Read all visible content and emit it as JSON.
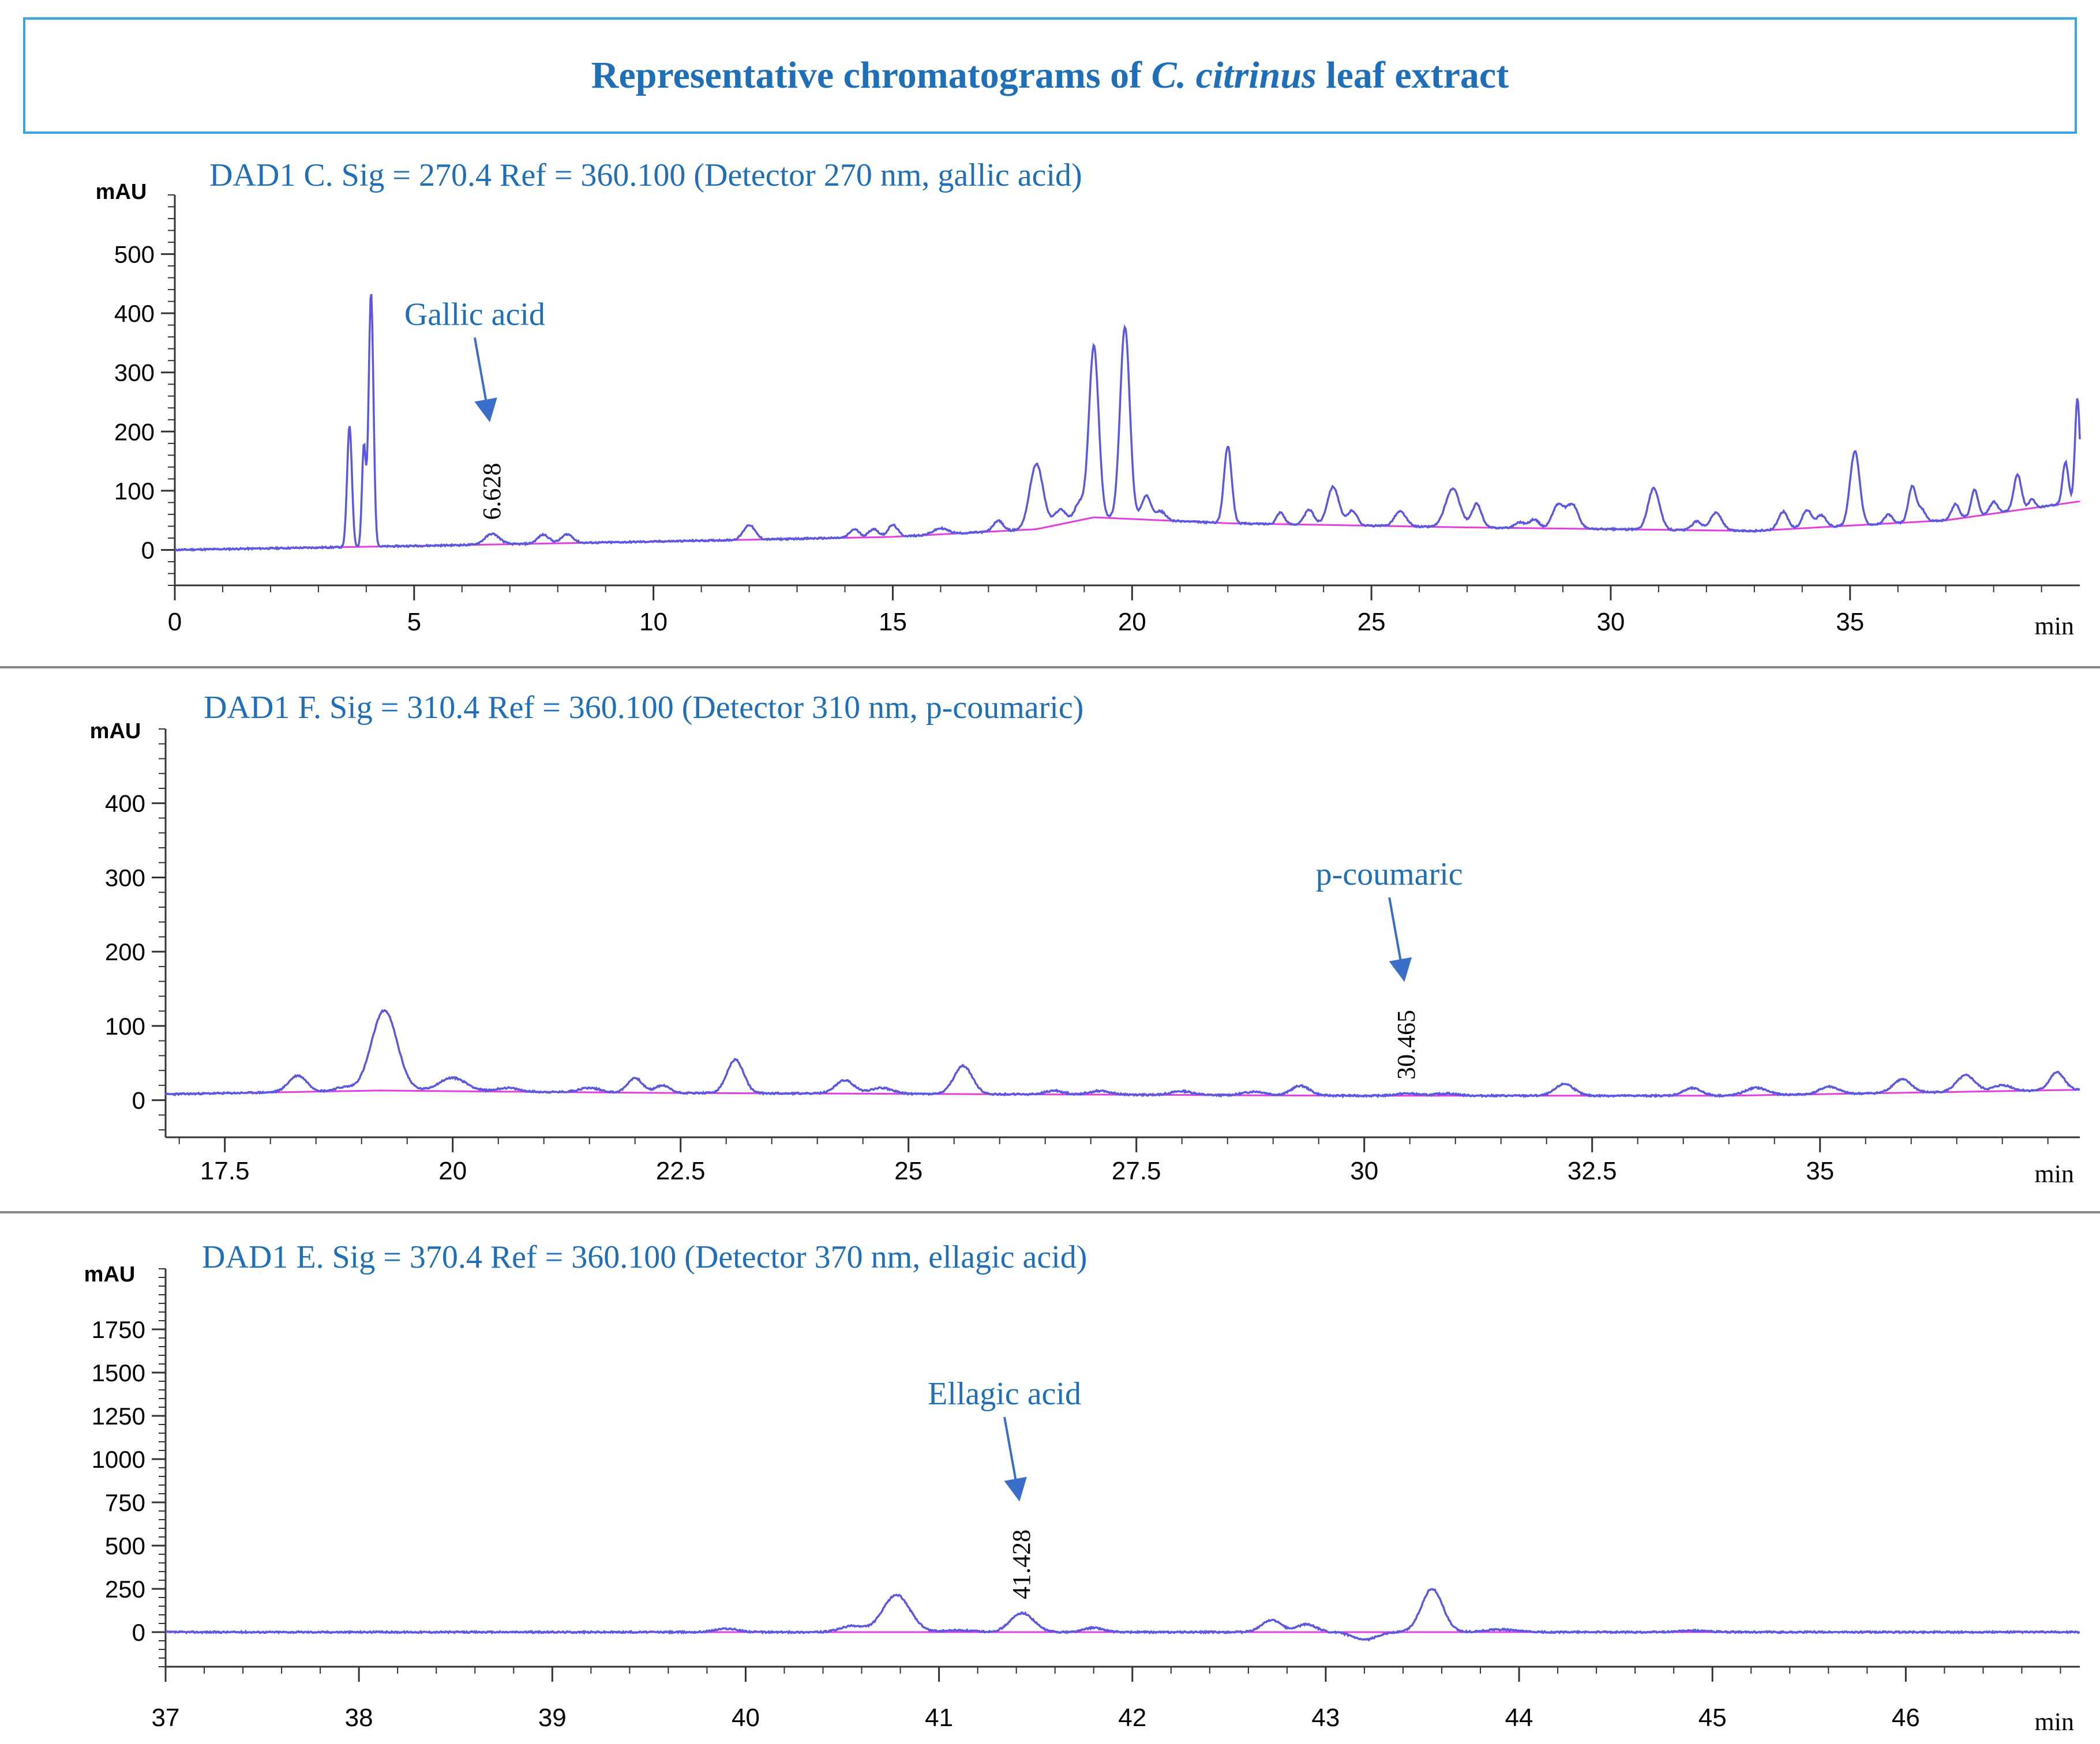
{
  "figure": {
    "title_prefix": "Representative chromatograms of ",
    "title_species": "C. citrinus",
    "title_suffix": " leaf extract",
    "colors": {
      "title": "#1f6fb8",
      "title_border": "#3aa6dd",
      "signal": "#5b57e0",
      "baseline": "#e040e0",
      "label": "#1f6fb8",
      "arrow": "#3a6fc9",
      "axis": "#333333",
      "divider": "#888888"
    }
  },
  "chart_data": [
    {
      "type": "line",
      "id": "p1",
      "title": "DAD1 C. Sig = 270.4     Ref = 360.100 (Detector 270 nm, gallic acid)",
      "xlabel": "min",
      "ylabel": "mAU",
      "xlim": [
        0,
        39.8
      ],
      "ylim": [
        -60,
        600
      ],
      "xticks": [
        0,
        5,
        10,
        15,
        20,
        25,
        30,
        35
      ],
      "xtick_labels": [
        "0",
        "5",
        "10",
        "15",
        "20",
        "25",
        "30",
        "35"
      ],
      "yticks": [
        0,
        100,
        200,
        300,
        400,
        500
      ],
      "ytick_labels": [
        "0",
        "100",
        "200",
        "300",
        "400",
        "500"
      ],
      "baseline": [
        [
          0,
          0
        ],
        [
          3.8,
          5
        ],
        [
          10,
          14
        ],
        [
          15,
          22
        ],
        [
          18,
          35
        ],
        [
          19.2,
          55
        ],
        [
          22,
          45
        ],
        [
          27,
          38
        ],
        [
          33,
          32
        ],
        [
          37,
          50
        ],
        [
          39.8,
          82
        ]
      ],
      "peaks": [
        [
          3.65,
          205,
          0.05
        ],
        [
          3.95,
          170,
          0.04
        ],
        [
          4.1,
          430,
          0.05
        ],
        [
          6.63,
          18,
          0.15
        ],
        [
          7.7,
          15,
          0.12
        ],
        [
          8.2,
          15,
          0.12
        ],
        [
          12.0,
          25,
          0.12
        ],
        [
          14.2,
          14,
          0.1
        ],
        [
          14.6,
          14,
          0.1
        ],
        [
          15.0,
          20,
          0.1
        ],
        [
          16.0,
          10,
          0.15
        ],
        [
          17.2,
          18,
          0.1
        ],
        [
          18.0,
          110,
          0.14
        ],
        [
          18.5,
          25,
          0.12
        ],
        [
          18.9,
          30,
          0.1
        ],
        [
          19.2,
          290,
          0.1
        ],
        [
          19.85,
          325,
          0.1
        ],
        [
          20.3,
          40,
          0.1
        ],
        [
          20.6,
          15,
          0.1
        ],
        [
          22.0,
          130,
          0.08
        ],
        [
          23.1,
          20,
          0.08
        ],
        [
          23.7,
          25,
          0.1
        ],
        [
          24.2,
          65,
          0.12
        ],
        [
          24.6,
          25,
          0.1
        ],
        [
          25.6,
          25,
          0.12
        ],
        [
          26.7,
          65,
          0.15
        ],
        [
          27.2,
          40,
          0.1
        ],
        [
          28.1,
          10,
          0.1
        ],
        [
          28.4,
          15,
          0.1
        ],
        [
          28.9,
          40,
          0.12
        ],
        [
          29.2,
          40,
          0.12
        ],
        [
          30.9,
          70,
          0.12
        ],
        [
          31.8,
          15,
          0.1
        ],
        [
          32.2,
          30,
          0.12
        ],
        [
          33.6,
          30,
          0.1
        ],
        [
          34.1,
          30,
          0.1
        ],
        [
          34.4,
          20,
          0.1
        ],
        [
          35.1,
          125,
          0.1
        ],
        [
          35.8,
          15,
          0.08
        ],
        [
          36.3,
          60,
          0.08
        ],
        [
          36.5,
          20,
          0.08
        ],
        [
          37.2,
          25,
          0.08
        ],
        [
          37.6,
          45,
          0.07
        ],
        [
          38.0,
          20,
          0.08
        ],
        [
          38.5,
          60,
          0.08
        ],
        [
          38.8,
          15,
          0.06
        ],
        [
          39.5,
          70,
          0.06
        ],
        [
          39.75,
          175,
          0.05
        ]
      ],
      "annotations": [
        {
          "label": "Gallic acid",
          "rt": "6.628",
          "x": 6.628
        }
      ],
      "seed": 11
    },
    {
      "type": "line",
      "id": "p2",
      "title": "DAD1 F. Sig = 310.4     Ref = 360.100 (Detector 310 nm, p-coumaric)",
      "xlabel": "min",
      "ylabel": "mAU",
      "xlim": [
        16.85,
        37.85
      ],
      "ylim": [
        -50,
        500
      ],
      "xticks": [
        17.5,
        20,
        22.5,
        25,
        27.5,
        30,
        32.5,
        35
      ],
      "xtick_labels": [
        "17.5",
        "20",
        "22.5",
        "25",
        "27.5",
        "30",
        "32.5",
        "35"
      ],
      "yticks": [
        0,
        100,
        200,
        300,
        400
      ],
      "ytick_labels": [
        "0",
        "100",
        "200",
        "300",
        "400"
      ],
      "baseline": [
        [
          16.85,
          8
        ],
        [
          19.2,
          13
        ],
        [
          22,
          10
        ],
        [
          30,
          6
        ],
        [
          34,
          6
        ],
        [
          37.85,
          14
        ]
      ],
      "peaks": [
        [
          18.3,
          22,
          0.1
        ],
        [
          18.8,
          5,
          0.1
        ],
        [
          19.25,
          108,
          0.14
        ],
        [
          20.0,
          18,
          0.15
        ],
        [
          20.6,
          5,
          0.12
        ],
        [
          21.5,
          6,
          0.12
        ],
        [
          22.0,
          20,
          0.08
        ],
        [
          22.3,
          10,
          0.08
        ],
        [
          23.1,
          45,
          0.09
        ],
        [
          24.3,
          18,
          0.1
        ],
        [
          24.7,
          8,
          0.12
        ],
        [
          25.6,
          38,
          0.1
        ],
        [
          26.6,
          5,
          0.1
        ],
        [
          27.1,
          5,
          0.12
        ],
        [
          28.0,
          5,
          0.12
        ],
        [
          28.8,
          5,
          0.12
        ],
        [
          29.3,
          13,
          0.1
        ],
        [
          30.47,
          3,
          0.12
        ],
        [
          30.9,
          3,
          0.12
        ],
        [
          32.2,
          16,
          0.1
        ],
        [
          33.6,
          10,
          0.1
        ],
        [
          34.3,
          10,
          0.12
        ],
        [
          35.1,
          10,
          0.1
        ],
        [
          35.9,
          18,
          0.1
        ],
        [
          36.6,
          22,
          0.1
        ],
        [
          37.0,
          8,
          0.1
        ],
        [
          37.6,
          24,
          0.08
        ]
      ],
      "annotations": [
        {
          "label": "p-coumaric",
          "rt": "30.465",
          "x": 30.465
        }
      ],
      "seed": 23
    },
    {
      "type": "line",
      "id": "p3",
      "title": "DAD1 E. Sig = 370.4     Ref = 360.100 (Detector 370 nm, ellagic acid)",
      "xlabel": "min",
      "ylabel": "mAU",
      "xlim": [
        37,
        46.9
      ],
      "ylim": [
        -200,
        2100
      ],
      "xticks": [
        37,
        38,
        39,
        40,
        41,
        42,
        43,
        44,
        45,
        46
      ],
      "xtick_labels": [
        "37",
        "38",
        "39",
        "40",
        "41",
        "42",
        "43",
        "44",
        "45",
        "46"
      ],
      "yticks": [
        0,
        250,
        500,
        750,
        1000,
        1250,
        1500,
        1750
      ],
      "ytick_labels": [
        "0",
        "250",
        "500",
        "750",
        "1000",
        "1250",
        "1500",
        "1750"
      ],
      "baseline": [
        [
          37,
          0
        ],
        [
          46.9,
          0
        ]
      ],
      "peaks": [
        [
          39.9,
          20,
          0.06
        ],
        [
          40.55,
          35,
          0.06
        ],
        [
          40.78,
          215,
          0.07
        ],
        [
          41.1,
          10,
          0.08
        ],
        [
          41.43,
          110,
          0.06
        ],
        [
          41.8,
          25,
          0.05
        ],
        [
          42.72,
          70,
          0.05
        ],
        [
          42.9,
          45,
          0.05
        ],
        [
          43.2,
          -45,
          0.06
        ],
        [
          43.55,
          250,
          0.055
        ],
        [
          43.9,
          15,
          0.08
        ],
        [
          44.9,
          8,
          0.08
        ]
      ],
      "annotations": [
        {
          "label": "Ellagic acid",
          "rt": "41.428",
          "x": 41.428
        }
      ],
      "seed": 37
    }
  ]
}
